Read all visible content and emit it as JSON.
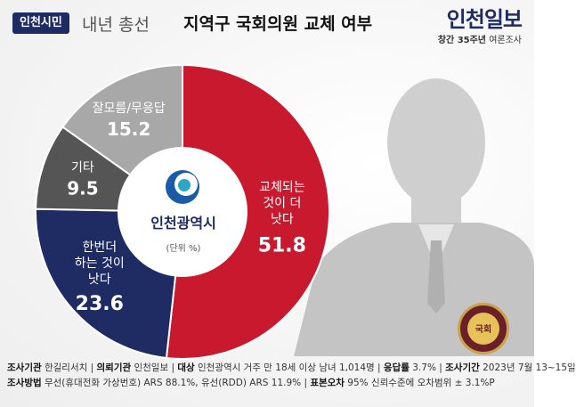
{
  "header": {
    "badge": "인천시민",
    "title_pre": "내년 총선",
    "title_main": "지역구 국회의원 교체 여부",
    "logo_main": "인천일보",
    "logo_sub_bold": "창간 35주년",
    "logo_sub_rest": " 여론조사"
  },
  "center": {
    "label": "인천광역시",
    "unit": "(단위 %)"
  },
  "emblem": {
    "label": "국회"
  },
  "chart_data": {
    "type": "pie",
    "variant": "donut",
    "unit": "%",
    "start_angle_deg": 0,
    "direction": "clockwise",
    "slices": [
      {
        "label": [
          "교체되는",
          "것이 더",
          "낫다"
        ],
        "value": 51.8,
        "color": "#c8192e"
      },
      {
        "label": [
          "한번더",
          "하는 것이",
          "낫다"
        ],
        "value": 23.6,
        "color": "#1f2b63"
      },
      {
        "label": [
          "기타"
        ],
        "value": 9.5,
        "color": "#555555"
      },
      {
        "label": [
          "잘모름/무응답"
        ],
        "value": 15.2,
        "color": "#a8a8a8"
      }
    ]
  },
  "footer": {
    "line1": [
      {
        "k": "조사기관",
        "v": " 한길리서치 | "
      },
      {
        "k": "의뢰기관",
        "v": " 인천일보 | "
      },
      {
        "k": "대상",
        "v": " 인천광역시 거주 만 18세 이상 남녀 1,014명 | "
      },
      {
        "k": "응답률",
        "v": " 3.7% | "
      },
      {
        "k": "조사기간",
        "v": " 2023년 7월 13~15일"
      }
    ],
    "line2": [
      {
        "k": "조사방법",
        "v": " 무선(휴대전화 가상번호) ARS 88.1%, 유선(RDD) ARS 11.9% | "
      },
      {
        "k": "표본오차",
        "v": " 95% 신뢰수준에 오차범위 ± 3.1%P"
      }
    ]
  }
}
